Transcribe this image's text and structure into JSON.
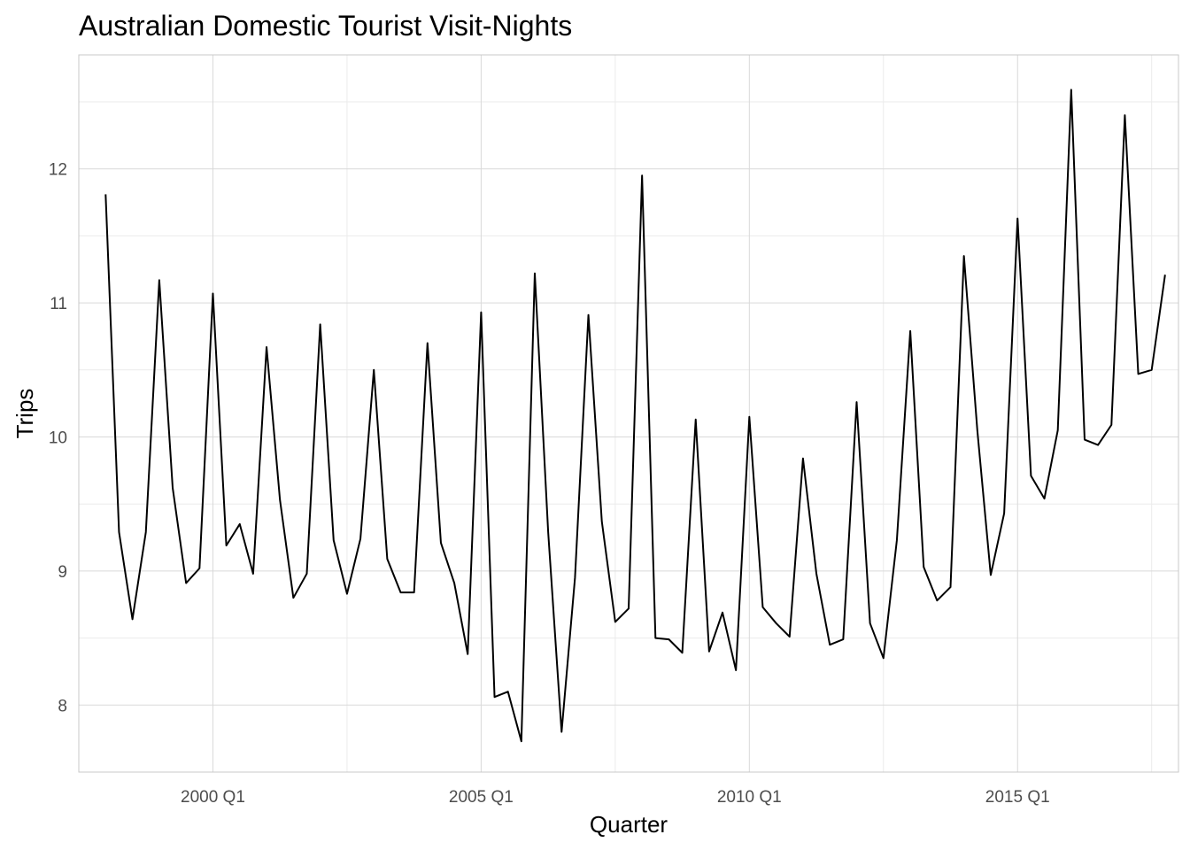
{
  "chart_data": {
    "type": "line",
    "title": "Australian Domestic Tourist Visit-Nights",
    "xlabel": "Quarter",
    "ylabel": "Trips",
    "x_ticks": [
      "2000 Q1",
      "2005 Q1",
      "2010 Q1",
      "2015 Q1"
    ],
    "y_ticks": [
      8,
      9,
      10,
      11,
      12
    ],
    "xlim": [
      "1997 Q3",
      "2018 Q1"
    ],
    "ylim": [
      7.5,
      12.85
    ],
    "grid": true,
    "line_color": "#000000",
    "series": [
      {
        "x": [
          "1998 Q1",
          "1998 Q2",
          "1998 Q3",
          "1998 Q4",
          "1999 Q1",
          "1999 Q2",
          "1999 Q3",
          "1999 Q4",
          "2000 Q1",
          "2000 Q2",
          "2000 Q3",
          "2000 Q4",
          "2001 Q1",
          "2001 Q2",
          "2001 Q3",
          "2001 Q4",
          "2002 Q1",
          "2002 Q2",
          "2002 Q3",
          "2002 Q4",
          "2003 Q1",
          "2003 Q2",
          "2003 Q3",
          "2003 Q4",
          "2004 Q1",
          "2004 Q2",
          "2004 Q3",
          "2004 Q4",
          "2005 Q1",
          "2005 Q2",
          "2005 Q3",
          "2005 Q4",
          "2006 Q1",
          "2006 Q2",
          "2006 Q3",
          "2006 Q4",
          "2007 Q1",
          "2007 Q2",
          "2007 Q3",
          "2007 Q4",
          "2008 Q1",
          "2008 Q2",
          "2008 Q3",
          "2008 Q4",
          "2009 Q1",
          "2009 Q2",
          "2009 Q3",
          "2009 Q4",
          "2010 Q1",
          "2010 Q2",
          "2010 Q3",
          "2010 Q4",
          "2011 Q1",
          "2011 Q2",
          "2011 Q3",
          "2011 Q4",
          "2012 Q1",
          "2012 Q2",
          "2012 Q3",
          "2012 Q4",
          "2013 Q1",
          "2013 Q2",
          "2013 Q3",
          "2013 Q4",
          "2014 Q1",
          "2014 Q2",
          "2014 Q3",
          "2014 Q4",
          "2015 Q1",
          "2015 Q2",
          "2015 Q3",
          "2015 Q4",
          "2016 Q1",
          "2016 Q2",
          "2016 Q3",
          "2016 Q4",
          "2017 Q1",
          "2017 Q2",
          "2017 Q3",
          "2017 Q4"
        ],
        "values": [
          11.81,
          9.29,
          8.64,
          9.29,
          11.17,
          9.62,
          8.91,
          9.02,
          11.07,
          9.19,
          9.35,
          8.98,
          10.67,
          9.53,
          8.8,
          8.98,
          10.84,
          9.23,
          8.83,
          9.24,
          10.5,
          9.09,
          8.84,
          8.84,
          10.7,
          9.21,
          8.91,
          8.38,
          10.93,
          8.06,
          8.1,
          7.73,
          11.22,
          9.29,
          7.8,
          8.95,
          10.91,
          9.37,
          8.62,
          8.72,
          11.95,
          8.5,
          8.49,
          8.39,
          10.13,
          8.4,
          8.69,
          8.26,
          10.15,
          8.73,
          8.61,
          8.51,
          9.84,
          8.98,
          8.45,
          8.49,
          10.26,
          8.61,
          8.35,
          9.23,
          10.79,
          9.03,
          8.78,
          8.88,
          11.35,
          10.05,
          8.97,
          9.43,
          11.63,
          9.71,
          9.54,
          10.05,
          12.59,
          9.98,
          9.94,
          10.09,
          12.4,
          10.47,
          10.5,
          11.21
        ]
      }
    ]
  }
}
